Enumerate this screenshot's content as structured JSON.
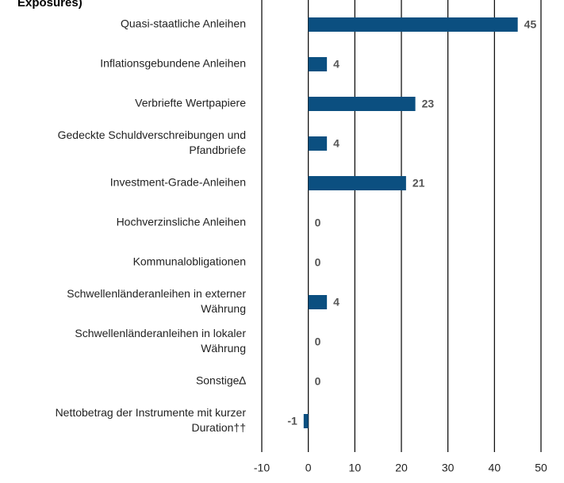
{
  "chart_data": {
    "type": "barh",
    "title": "Exposures)",
    "categories": [
      [
        "Quasi-staatliche Anleihen"
      ],
      [
        "Inflationsgebundene Anleihen"
      ],
      [
        "Verbriefte Wertpapiere"
      ],
      [
        "Gedeckte Schuldverschreibungen und",
        "Pfandbriefe"
      ],
      [
        "Investment-Grade-Anleihen"
      ],
      [
        "Hochverzinsliche Anleihen"
      ],
      [
        "Kommunalobligationen"
      ],
      [
        "Schwellenländeranleihen in externer",
        "Währung"
      ],
      [
        "Schwellenländeranleihen in lokaler",
        "Währung"
      ],
      [
        "Sonstige∆"
      ],
      [
        "Nettobetrag der Instrumente mit kurzer",
        "Duration††"
      ]
    ],
    "values": [
      45,
      4,
      23,
      4,
      21,
      0,
      0,
      4,
      0,
      0,
      -1
    ],
    "color": "#0b4f80",
    "xlim": [
      -10,
      50
    ],
    "xticks": [
      -10,
      0,
      10,
      20,
      30,
      40,
      50
    ],
    "grid": true
  }
}
